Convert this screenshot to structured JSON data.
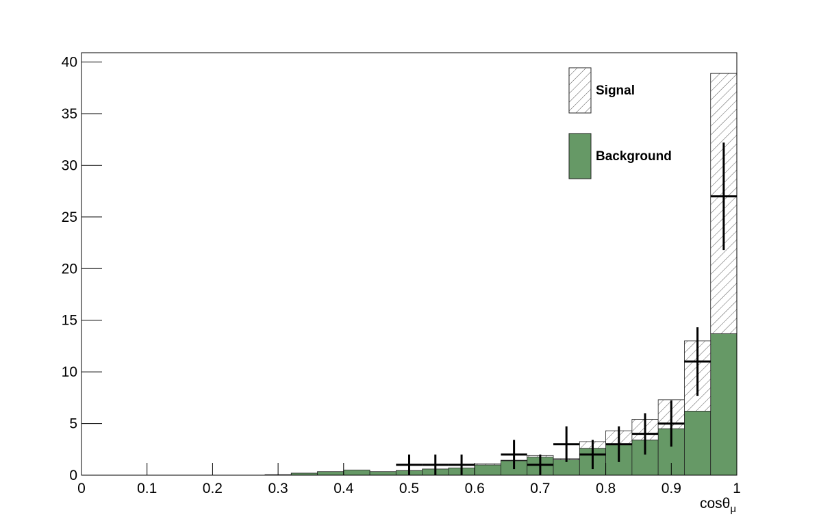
{
  "chart_data": {
    "type": "stacked_histogram",
    "xlabel": {
      "text": "cosθ",
      "subscript": "μ"
    },
    "bins": [
      0,
      0.04,
      0.08,
      0.12,
      0.16,
      0.2,
      0.24,
      0.28,
      0.32,
      0.36,
      0.4,
      0.44,
      0.48,
      0.52,
      0.56,
      0.6,
      0.64,
      0.68,
      0.72,
      0.76,
      0.8,
      0.84,
      0.88,
      0.92,
      0.96,
      1
    ],
    "series": [
      {
        "name": "Background",
        "color": "#669966",
        "fill": "solid",
        "values": [
          0,
          0,
          0,
          0,
          0,
          0,
          0,
          0.05,
          0.2,
          0.35,
          0.5,
          0.35,
          0.45,
          0.6,
          0.7,
          1.0,
          1.4,
          1.75,
          1.5,
          2.6,
          3.0,
          3.4,
          4.5,
          6.2,
          13.7
        ]
      },
      {
        "name": "Signal",
        "color": "#444444",
        "fill": "hatch",
        "values": [
          0,
          0,
          0,
          0,
          0,
          0,
          0,
          0,
          0,
          0,
          0,
          0,
          0,
          0,
          0,
          0.1,
          0.05,
          0.15,
          0.1,
          0.65,
          1.3,
          2.0,
          2.8,
          6.8,
          25.2
        ]
      }
    ],
    "data": {
      "color": "#000000",
      "x": [
        0.5,
        0.54,
        0.58,
        0.66,
        0.7,
        0.74,
        0.78,
        0.82,
        0.86,
        0.9,
        0.94,
        0.98
      ],
      "values": [
        1,
        1,
        1,
        2,
        1,
        3,
        2,
        3,
        4,
        5,
        11,
        27
      ],
      "errors": [
        1,
        1,
        1,
        1.41,
        1,
        1.73,
        1.41,
        1.73,
        2,
        2.24,
        3.32,
        5.2
      ]
    },
    "xlim": [
      0,
      1
    ],
    "xticks": [
      0,
      0.1,
      0.2,
      0.3,
      0.4,
      0.5,
      0.6,
      0.7,
      0.8,
      0.9,
      1
    ],
    "ylim": [
      0,
      40.9
    ],
    "yticks": [
      0,
      5,
      10,
      15,
      20,
      25,
      30,
      35,
      40
    ],
    "legend": "top-right"
  }
}
